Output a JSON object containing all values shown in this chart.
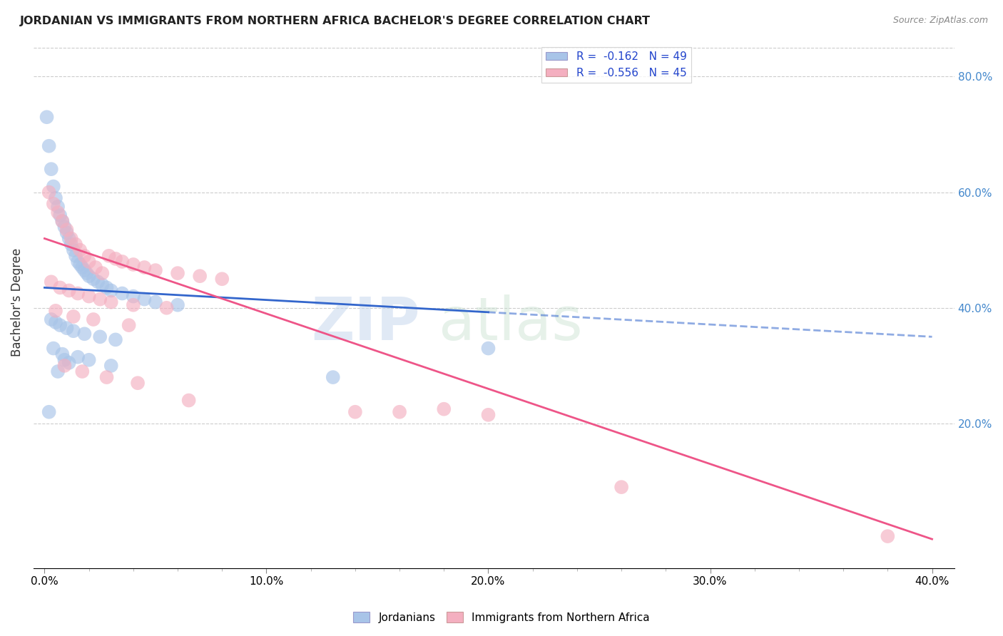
{
  "title": "JORDANIAN VS IMMIGRANTS FROM NORTHERN AFRICA BACHELOR'S DEGREE CORRELATION CHART",
  "source": "Source: ZipAtlas.com",
  "ylabel": "Bachelor's Degree",
  "x_tick_labels": [
    "0.0%",
    "",
    "",
    "",
    "",
    "10.0%",
    "",
    "",
    "",
    "",
    "20.0%",
    "",
    "",
    "",
    "",
    "30.0%",
    "",
    "",
    "",
    "",
    "40.0%"
  ],
  "x_tick_vals": [
    0,
    2,
    4,
    6,
    8,
    10,
    12,
    14,
    16,
    18,
    20,
    22,
    24,
    26,
    28,
    30,
    32,
    34,
    36,
    38,
    40
  ],
  "x_tick_labels_main": [
    "0.0%",
    "10.0%",
    "20.0%",
    "30.0%",
    "40.0%"
  ],
  "x_tick_vals_main": [
    0,
    10,
    20,
    30,
    40
  ],
  "y_tick_labels": [
    "20.0%",
    "40.0%",
    "60.0%",
    "80.0%"
  ],
  "y_tick_vals": [
    20,
    40,
    60,
    80
  ],
  "xlim": [
    -0.5,
    41.0
  ],
  "ylim": [
    -5,
    87
  ],
  "legend_labels": [
    "Jordanians",
    "Immigrants from Northern Africa"
  ],
  "R_jordanian": -0.162,
  "N_jordanian": 49,
  "R_nafr": -0.556,
  "N_nafr": 45,
  "blue_color": "#a8c4e8",
  "pink_color": "#f4afc0",
  "trend_blue": "#3366cc",
  "trend_pink": "#ee5588",
  "grid_color": "#cccccc",
  "jordanian_x": [
    0.1,
    0.2,
    0.3,
    0.4,
    0.5,
    0.6,
    0.7,
    0.8,
    0.9,
    1.0,
    1.1,
    1.2,
    1.3,
    1.4,
    1.5,
    1.6,
    1.7,
    1.8,
    1.9,
    2.0,
    2.2,
    2.4,
    2.6,
    2.8,
    3.0,
    3.5,
    4.0,
    4.5,
    5.0,
    6.0,
    0.3,
    0.5,
    0.7,
    1.0,
    1.3,
    1.8,
    2.5,
    3.2,
    0.4,
    0.8,
    1.5,
    2.0,
    3.0,
    13.0,
    20.0,
    0.6,
    1.1,
    0.2,
    0.9
  ],
  "jordanian_y": [
    73.0,
    68.0,
    64.0,
    61.0,
    59.0,
    57.5,
    56.0,
    55.0,
    54.0,
    53.0,
    52.0,
    51.0,
    50.0,
    49.0,
    48.0,
    47.5,
    47.0,
    46.5,
    46.0,
    45.5,
    45.0,
    44.5,
    44.0,
    43.5,
    43.0,
    42.5,
    42.0,
    41.5,
    41.0,
    40.5,
    38.0,
    37.5,
    37.0,
    36.5,
    36.0,
    35.5,
    35.0,
    34.5,
    33.0,
    32.0,
    31.5,
    31.0,
    30.0,
    28.0,
    33.0,
    29.0,
    30.5,
    22.0,
    31.0
  ],
  "nafr_x": [
    0.2,
    0.4,
    0.6,
    0.8,
    1.0,
    1.2,
    1.4,
    1.6,
    1.8,
    2.0,
    2.3,
    2.6,
    2.9,
    3.2,
    3.5,
    4.0,
    4.5,
    5.0,
    6.0,
    7.0,
    8.0,
    0.3,
    0.7,
    1.1,
    1.5,
    2.0,
    2.5,
    3.0,
    4.0,
    5.5,
    0.5,
    1.3,
    2.2,
    3.8,
    16.0,
    18.0,
    20.0,
    26.0,
    38.0,
    0.9,
    1.7,
    2.8,
    4.2,
    6.5,
    14.0
  ],
  "nafr_y": [
    60.0,
    58.0,
    56.5,
    55.0,
    53.5,
    52.0,
    51.0,
    50.0,
    49.0,
    48.0,
    47.0,
    46.0,
    49.0,
    48.5,
    48.0,
    47.5,
    47.0,
    46.5,
    46.0,
    45.5,
    45.0,
    44.5,
    43.5,
    43.0,
    42.5,
    42.0,
    41.5,
    41.0,
    40.5,
    40.0,
    39.5,
    38.5,
    38.0,
    37.0,
    22.0,
    22.5,
    21.5,
    9.0,
    0.5,
    30.0,
    29.0,
    28.0,
    27.0,
    24.0,
    22.0
  ],
  "trend_blue_x0": 0,
  "trend_blue_y0": 43.5,
  "trend_blue_x1": 40,
  "trend_blue_y1": 35.0,
  "trend_blue_solid_end": 20,
  "trend_pink_x0": 0,
  "trend_pink_y0": 52.0,
  "trend_pink_x1": 40,
  "trend_pink_y1": 0.0
}
